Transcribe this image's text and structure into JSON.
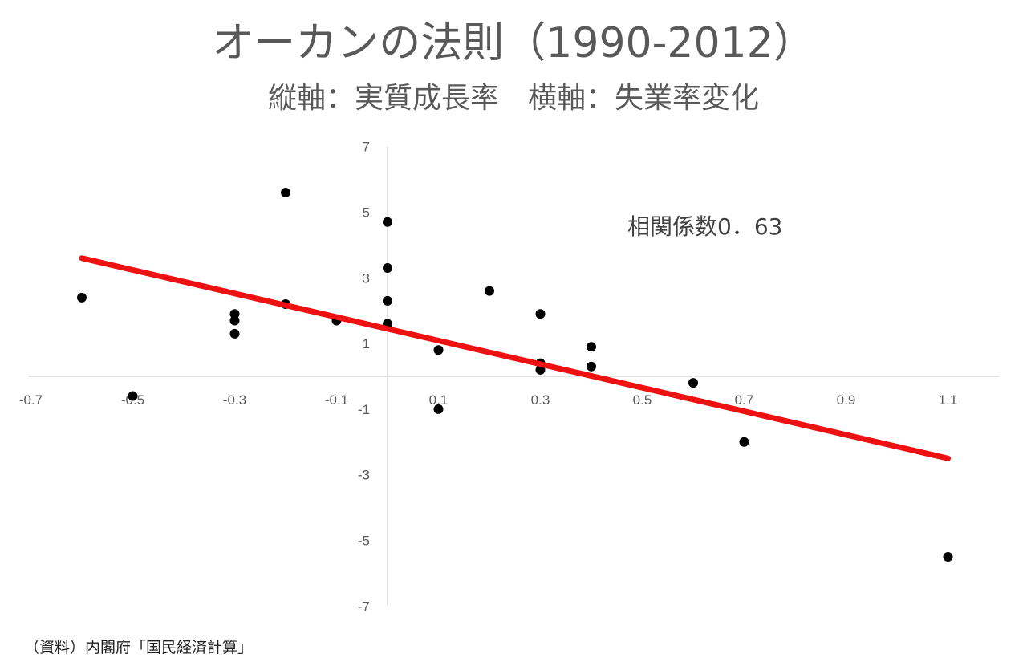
{
  "chart_data": {
    "type": "scatter",
    "title": "オーカンの法則（1990-2012）",
    "subtitle": "縦軸：実質成長率　横軸：失業率変化",
    "xlim": [
      -0.7,
      1.2
    ],
    "ylim": [
      -7,
      7
    ],
    "x_ticks": [
      "-0.7",
      "-0.5",
      "-0.3",
      "-0.1",
      "0.1",
      "0.3",
      "0.5",
      "0.7",
      "0.9",
      "1.1"
    ],
    "x_tick_values": [
      -0.7,
      -0.5,
      -0.3,
      -0.1,
      0.1,
      0.3,
      0.5,
      0.7,
      0.9,
      1.1
    ],
    "y_ticks": [
      "7",
      "5",
      "3",
      "1",
      "-1",
      "-3",
      "-5",
      "-7"
    ],
    "y_tick_values": [
      7,
      5,
      3,
      1,
      -1,
      -3,
      -5,
      -7
    ],
    "grid": false,
    "points": [
      {
        "x": -0.6,
        "y": 2.4
      },
      {
        "x": -0.5,
        "y": -0.6
      },
      {
        "x": -0.3,
        "y": 1.9
      },
      {
        "x": -0.3,
        "y": 1.7
      },
      {
        "x": -0.3,
        "y": 1.3
      },
      {
        "x": -0.2,
        "y": 5.6
      },
      {
        "x": -0.2,
        "y": 2.2
      },
      {
        "x": -0.1,
        "y": 1.7
      },
      {
        "x": 0.0,
        "y": 4.7
      },
      {
        "x": 0.0,
        "y": 3.3
      },
      {
        "x": 0.0,
        "y": 2.3
      },
      {
        "x": 0.0,
        "y": 1.6
      },
      {
        "x": 0.1,
        "y": 0.8
      },
      {
        "x": 0.1,
        "y": -1.0
      },
      {
        "x": 0.2,
        "y": 2.6
      },
      {
        "x": 0.3,
        "y": 1.9
      },
      {
        "x": 0.3,
        "y": 0.4
      },
      {
        "x": 0.3,
        "y": 0.2
      },
      {
        "x": 0.4,
        "y": 0.9
      },
      {
        "x": 0.4,
        "y": 0.3
      },
      {
        "x": 0.6,
        "y": -0.2
      },
      {
        "x": 0.7,
        "y": -2.0
      },
      {
        "x": 1.1,
        "y": -5.5
      }
    ],
    "trendline": {
      "x": [
        -0.6,
        1.1
      ],
      "y": [
        3.6,
        -2.5
      ],
      "color": "#ee1111"
    },
    "point_color": "#000000",
    "annotation": "相関係数0．63"
  },
  "source_note": "（資料）内閣府「国民経済計算」"
}
